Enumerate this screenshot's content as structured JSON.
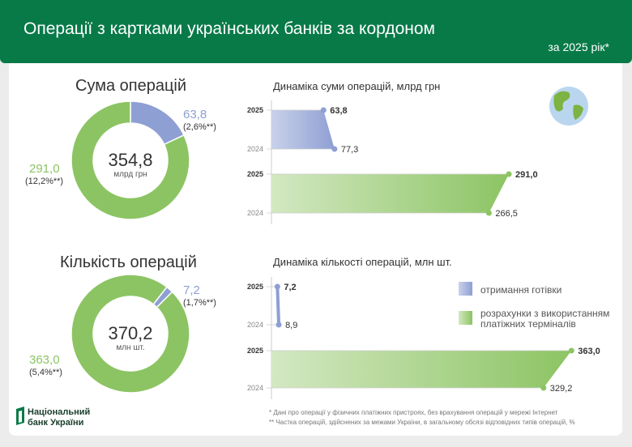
{
  "header": {
    "title": "Операції з картками українських банків за кордоном",
    "period": "за 2025 рік*"
  },
  "colors": {
    "header": "#087a48",
    "cash": "#8e9fd3",
    "terminals": "#8cc463"
  },
  "sections": [
    {
      "title": "Сума операцій",
      "total": "354,8",
      "unit": "млрд грн",
      "cash": {
        "value": "63,8",
        "share": "(2,6%**)"
      },
      "terminals": {
        "value": "291,0",
        "share": "(12,2%**)"
      },
      "chart_title": "Динаміка суми операцій, млрд грн"
    },
    {
      "title": "Кількість операцій",
      "total": "370,2",
      "unit": "млн шт.",
      "cash": {
        "value": "7,2",
        "share": "(1,7%**)"
      },
      "terminals": {
        "value": "363,0",
        "share": "(5,4%**)"
      },
      "chart_title": "Динаміка кількості операцій, млн шт."
    }
  ],
  "legend": {
    "cash": "отримання готівки",
    "terminals": "розрахунки з використанням платіжних терміналів"
  },
  "footnotes": [
    "* Дані про операції у фізичних платіжних пристроях, без врахування операцій у мережі Інтернет",
    "** Частка операцій, здійснених за межами України, в загальному обсязі відповідних типів операцій, %"
  ],
  "logo": {
    "line1": "Національний",
    "line2": "банк України"
  },
  "chart_data": [
    {
      "type": "pie",
      "title": "Сума операцій",
      "categories": [
        "отримання готівки",
        "розрахунки з використанням платіжних терміналів"
      ],
      "values": [
        63.8,
        291.0
      ],
      "total": 354.8
    },
    {
      "type": "bar",
      "title": "Динаміка суми операцій, млрд грн",
      "categories": [
        "2025",
        "2024"
      ],
      "series": [
        {
          "name": "отримання готівки",
          "values": [
            63.8,
            77.3
          ],
          "labels": [
            "63,8",
            "77,3"
          ]
        },
        {
          "name": "розрахунки з використанням платіжних терміналів",
          "values": [
            291.0,
            266.5
          ],
          "labels": [
            "291,0",
            "266,5"
          ]
        }
      ]
    },
    {
      "type": "pie",
      "title": "Кількість операцій",
      "categories": [
        "отримання готівки",
        "розрахунки з використанням платіжних терміналів"
      ],
      "values": [
        7.2,
        363.0
      ],
      "total": 370.2
    },
    {
      "type": "bar",
      "title": "Динаміка кількості операцій, млн шт.",
      "categories": [
        "2025",
        "2024"
      ],
      "series": [
        {
          "name": "отримання готівки",
          "values": [
            7.2,
            8.9
          ],
          "labels": [
            "7,2",
            "8,9"
          ]
        },
        {
          "name": "розрахунки з використанням платіжних терміналів",
          "values": [
            363.0,
            329.2
          ],
          "labels": [
            "363,0",
            "329,2"
          ]
        }
      ]
    }
  ]
}
